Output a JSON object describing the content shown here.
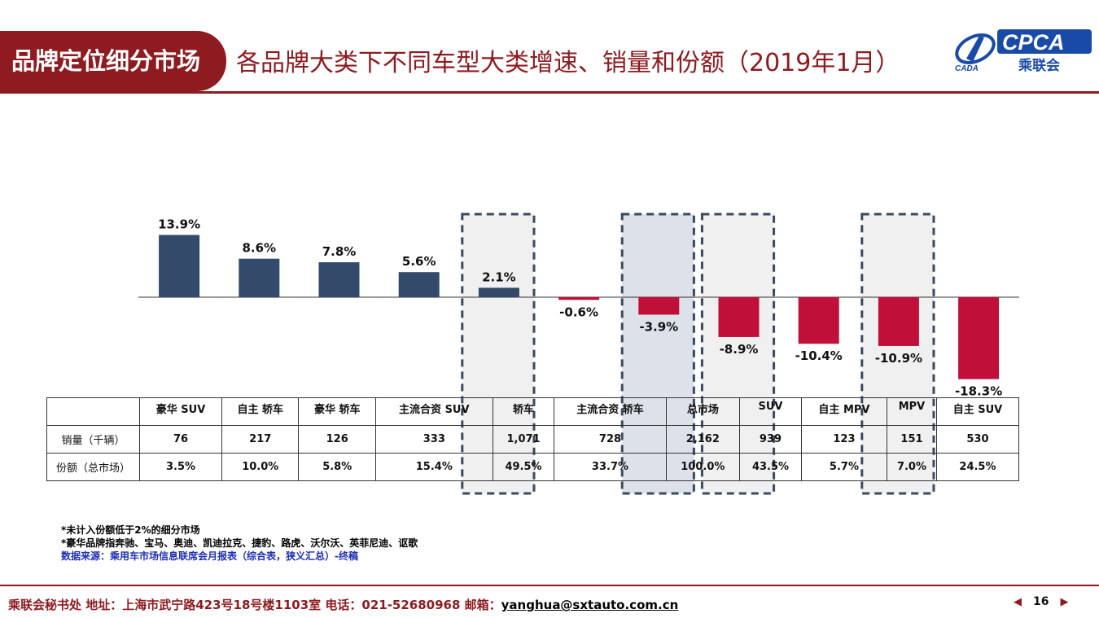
{
  "header": {
    "tag": "品牌定位细分市场",
    "title": "各品牌大类下不同车型大类增速、销量和份额（2019年1月）",
    "logo_text": "CPCA",
    "logo_sub": "乘联会",
    "logo_small": "CADA"
  },
  "chart_data": {
    "type": "bar",
    "categories": [
      "豪华 SUV",
      "自主 轿车",
      "豪华 轿车",
      "主流合资 SUV",
      "轿车",
      "主流合资 轿车",
      "总市场",
      "SUV",
      "自主 MPV",
      "MPV",
      "自主 SUV"
    ],
    "values": [
      13.9,
      8.6,
      7.8,
      5.6,
      2.1,
      -0.6,
      -3.9,
      -8.9,
      -10.4,
      -10.9,
      -18.3
    ],
    "value_labels": [
      "13.9%",
      "8.6%",
      "7.8%",
      "5.6%",
      "2.1%",
      "-0.6%",
      "-3.9%",
      "-8.9%",
      "-10.4%",
      "-10.9%",
      "-18.3%"
    ],
    "highlighted": [
      "轿车",
      "总市场",
      "SUV",
      "MPV"
    ],
    "filled_highlight": "总市场",
    "colors": {
      "positive": "#334a6b",
      "negative": "#c0103a",
      "highlight_box": "#dde2ea",
      "dashed_box": "#3a4a60"
    }
  },
  "table": {
    "rows": [
      {
        "label": "销量（千辆）",
        "values": [
          "76",
          "217",
          "126",
          "333",
          "1,071",
          "728",
          "2,162",
          "939",
          "123",
          "151",
          "530"
        ]
      },
      {
        "label": "份额（总市场）",
        "values": [
          "3.5%",
          "10.0%",
          "5.8%",
          "15.4%",
          "49.5%",
          "33.7%",
          "100.0%",
          "43.5%",
          "5.7%",
          "7.0%",
          "24.5%"
        ]
      }
    ]
  },
  "notes": {
    "line1": "*未计入份额低于2%的细分市场",
    "line2": "*豪华品牌指奔驰、宝马、奥迪、凯迪拉克、捷豹、路虎、沃尔沃、英菲尼迪、讴歌",
    "source": "数据来源：乘用车市场信息联席会月报表（综合表，狭义汇总）-终稿"
  },
  "footer": {
    "text": "乘联会秘书处   地址：上海市武宁路423号18号楼1103室  电话：021-52680968   邮箱：",
    "email": "yanghua@sxtauto.com.cn",
    "page": "16"
  }
}
